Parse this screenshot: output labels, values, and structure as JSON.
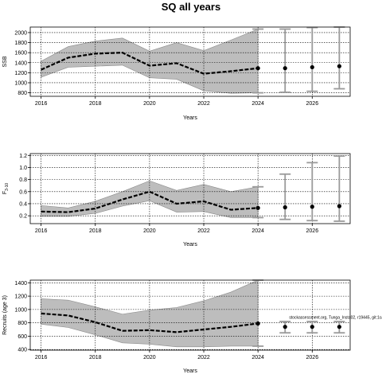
{
  "title": "SQ all years",
  "note": "stockassessment.org, Tunga_Insta02, r19445, git:1ca",
  "chart_data": [
    {
      "type": "line",
      "xlabel": "Years",
      "ylabel": "SSB",
      "ylim": [
        730,
        2110
      ],
      "xlim": [
        2015.6,
        2027.4
      ],
      "xticks": [
        2016,
        2018,
        2020,
        2022,
        2024,
        2026
      ],
      "yticks": [
        800,
        1000,
        1200,
        1400,
        1600,
        1800,
        2000
      ],
      "ytick_labels": [
        "800",
        "1000",
        "1200",
        "1400",
        "1600",
        "1800",
        "2000"
      ],
      "grid": true,
      "estimate": {
        "x": [
          2016,
          2017,
          2018,
          2019,
          2020,
          2021,
          2022,
          2023,
          2024
        ],
        "y": [
          1260,
          1500,
          1580,
          1600,
          1340,
          1390,
          1180,
          1230,
          1290
        ],
        "lower": [
          1110,
          1310,
          1330,
          1350,
          1100,
          1070,
          840,
          790,
          800
        ],
        "upper": [
          1430,
          1720,
          1830,
          1890,
          1630,
          1800,
          1640,
          1850,
          2070
        ]
      },
      "forecast": {
        "x": [
          2025,
          2026,
          2027
        ],
        "y": [
          1290,
          1310,
          1330
        ],
        "lower": [
          810,
          830,
          880
        ],
        "upper": [
          2070,
          2100,
          2110
        ]
      }
    },
    {
      "type": "line",
      "xlabel": "Years",
      "ylabel": "F",
      "ylabel_sub": "3-10",
      "ylim": [
        0.07,
        1.23
      ],
      "xlim": [
        2015.6,
        2027.4
      ],
      "xticks": [
        2016,
        2018,
        2020,
        2022,
        2024,
        2026
      ],
      "yticks": [
        0.2,
        0.4,
        0.6,
        0.8,
        1.0,
        1.2
      ],
      "ytick_labels": [
        "0.2",
        "0.4",
        "0.6",
        "0.8",
        "1.0",
        "1.2"
      ],
      "grid": true,
      "estimate": {
        "x": [
          2016,
          2017,
          2018,
          2019,
          2020,
          2021,
          2022,
          2023,
          2024
        ],
        "y": [
          0.27,
          0.26,
          0.32,
          0.47,
          0.6,
          0.4,
          0.44,
          0.3,
          0.33
        ],
        "lower": [
          0.19,
          0.19,
          0.24,
          0.36,
          0.45,
          0.26,
          0.27,
          0.17,
          0.17
        ],
        "upper": [
          0.37,
          0.33,
          0.44,
          0.6,
          0.78,
          0.62,
          0.72,
          0.6,
          0.68
        ]
      },
      "forecast": {
        "x": [
          2025,
          2026,
          2027
        ],
        "y": [
          0.34,
          0.35,
          0.36
        ],
        "lower": [
          0.14,
          0.12,
          0.11
        ],
        "upper": [
          0.89,
          1.08,
          1.19
        ]
      }
    },
    {
      "type": "line",
      "xlabel": "Years",
      "ylabel": "Recruits (age 3)",
      "ylim": [
        390,
        1440
      ],
      "xlim": [
        2015.6,
        2027.4
      ],
      "xticks": [
        2016,
        2018,
        2020,
        2022,
        2024,
        2026
      ],
      "yticks": [
        400,
        600,
        800,
        1000,
        1200,
        1400
      ],
      "ytick_labels": [
        "400",
        "600",
        "800",
        "1000",
        "1200",
        "1400"
      ],
      "grid": true,
      "estimate": {
        "x": [
          2016,
          2017,
          2018,
          2019,
          2020,
          2021,
          2022,
          2023,
          2024
        ],
        "y": [
          940,
          910,
          810,
          680,
          690,
          660,
          700,
          740,
          790
        ],
        "lower": [
          780,
          730,
          620,
          500,
          480,
          440,
          440,
          450,
          450
        ],
        "upper": [
          1160,
          1140,
          1040,
          930,
          990,
          1030,
          1130,
          1260,
          1440
        ]
      },
      "forecast": {
        "x": [
          2025,
          2026,
          2027
        ],
        "y": [
          740,
          740,
          740
        ],
        "lower": [
          650,
          650,
          650
        ],
        "upper": [
          820,
          820,
          820
        ]
      }
    }
  ]
}
